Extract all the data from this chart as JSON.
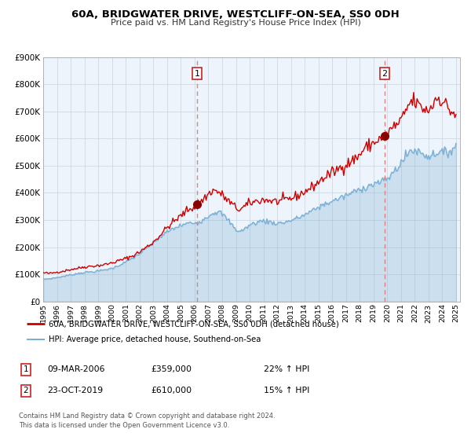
{
  "title": "60A, BRIDGWATER DRIVE, WESTCLIFF-ON-SEA, SS0 0DH",
  "subtitle": "Price paid vs. HM Land Registry's House Price Index (HPI)",
  "red_label": "60A, BRIDGWATER DRIVE, WESTCLIFF-ON-SEA, SS0 0DH (detached house)",
  "blue_label": "HPI: Average price, detached house, Southend-on-Sea",
  "annotation1_date": "09-MAR-2006",
  "annotation1_price": "£359,000",
  "annotation1_hpi": "22% ↑ HPI",
  "annotation2_date": "23-OCT-2019",
  "annotation2_price": "£610,000",
  "annotation2_hpi": "15% ↑ HPI",
  "footer": "Contains HM Land Registry data © Crown copyright and database right 2024.\nThis data is licensed under the Open Government Licence v3.0.",
  "vline1_year": 2006.18,
  "vline2_year": 2019.81,
  "marker1_year": 2006.18,
  "marker1_value": 359000,
  "marker2_year": 2019.81,
  "marker2_value": 610000,
  "ylim": [
    0,
    900000
  ],
  "xlim_start": 1995.0,
  "xlim_end": 2025.3,
  "red_color": "#cc0000",
  "blue_color": "#7ab0d4",
  "vline_color": "#e08080",
  "plot_bg": "#eef4fb",
  "grid_color": "#c8d4e0"
}
